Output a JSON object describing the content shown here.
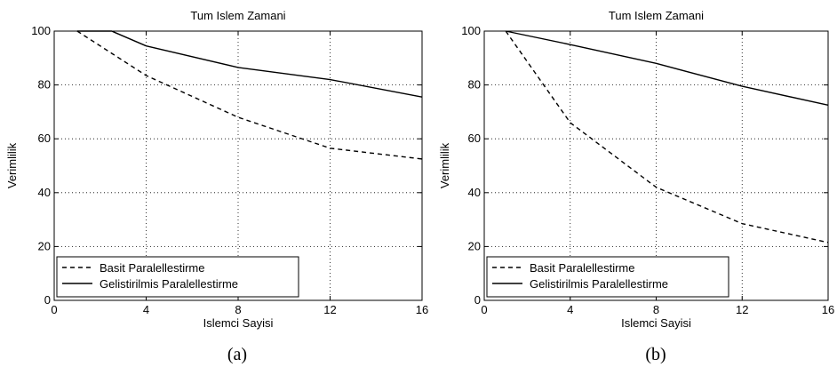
{
  "chart_data": [
    {
      "type": "line",
      "panel": "(a)",
      "title": "Tum Islem Zamani",
      "xlabel": "Islemci Sayisi",
      "ylabel": "Verimlilik",
      "xlim": [
        0,
        16
      ],
      "ylim": [
        0,
        100
      ],
      "xticks": [
        0,
        4,
        8,
        12,
        16
      ],
      "yticks": [
        0,
        20,
        40,
        60,
        80,
        100
      ],
      "grid": true,
      "legend_position": "bottom-left",
      "series": [
        {
          "name": "Basit Paralellestirme",
          "style": "dashed",
          "color": "#000000",
          "x": [
            1,
            4,
            8,
            12,
            16
          ],
          "y": [
            100,
            83.5,
            68,
            56.5,
            52.5
          ]
        },
        {
          "name": "Gelistirilmis Paralellestirme",
          "style": "solid",
          "color": "#000000",
          "x": [
            1,
            2.5,
            4,
            8,
            12,
            16
          ],
          "y": [
            100,
            100,
            94.5,
            86.5,
            82,
            75.5
          ]
        }
      ]
    },
    {
      "type": "line",
      "panel": "(b)",
      "title": "Tum Islem Zamani",
      "xlabel": "Islemci Sayisi",
      "ylabel": "Verimlilik",
      "xlim": [
        0,
        16
      ],
      "ylim": [
        0,
        100
      ],
      "xticks": [
        0,
        4,
        8,
        12,
        16
      ],
      "yticks": [
        0,
        20,
        40,
        60,
        80,
        100
      ],
      "grid": true,
      "legend_position": "bottom-left",
      "series": [
        {
          "name": "Basit Paralellestirme",
          "style": "dashed",
          "color": "#000000",
          "x": [
            1,
            4,
            8,
            12,
            16
          ],
          "y": [
            100,
            66,
            42,
            28.5,
            21.5
          ]
        },
        {
          "name": "Gelistirilmis Paralellestirme",
          "style": "solid",
          "color": "#000000",
          "x": [
            1,
            4,
            8,
            12,
            16
          ],
          "y": [
            100,
            95,
            88,
            79.5,
            72.5
          ]
        }
      ]
    }
  ]
}
